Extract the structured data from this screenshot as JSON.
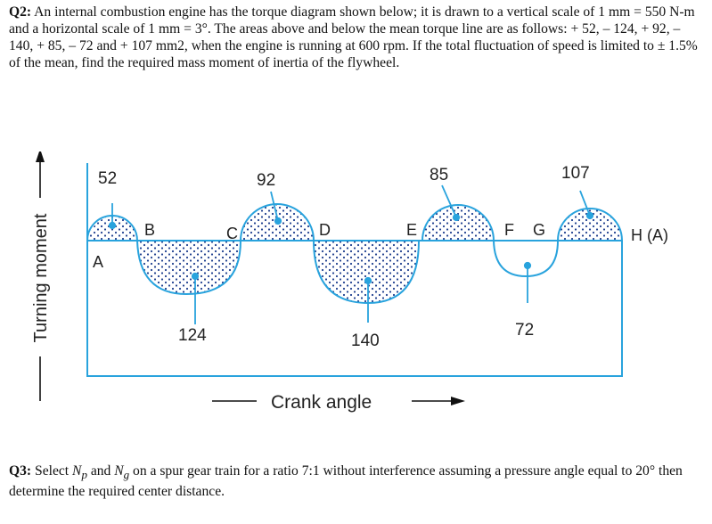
{
  "q2": {
    "label": "Q2:",
    "text": " An internal combustion engine has the torque diagram shown below; it is drawn to a vertical scale of 1 mm = 550 N-m and a horizontal scale of 1 mm = 3°. The areas above and below the mean torque line are as follows: + 52, – 124, + 92, – 140, + 85, – 72 and + 107 mm2, when the engine is running at 600 rpm. If the total fluctuation of speed is limited to ± 1.5% of the mean, find the required mass moment of inertia of the flywheel."
  },
  "figure": {
    "y_axis_label": "Turning moment",
    "x_axis_label": "Crank angle",
    "area_labels": [
      "52",
      "124",
      "92",
      "140",
      "85",
      "72",
      "107"
    ],
    "point_labels": [
      "A",
      "B",
      "C",
      "D",
      "E",
      "F",
      "G",
      "H (A)"
    ],
    "line_color": "#29a3dd",
    "dot_color": "#1f3f8f"
  },
  "q3": {
    "label": "Q3:",
    "text_1": " Select ",
    "np_main": "N",
    "np_sub": "p",
    "text_2": " and ",
    "ng_main": "N",
    "ng_sub": "g",
    "text_3": " on a spur gear train for a ratio 7:1 without interference assuming a pressure angle equal to 20° then determine the required center distance."
  }
}
